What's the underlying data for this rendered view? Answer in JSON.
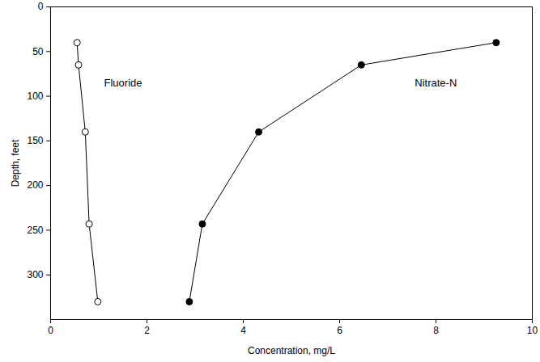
{
  "chart_data": {
    "type": "line",
    "xlabel": "Concentration, mg/L",
    "ylabel": "Depth, feet",
    "xlim": [
      0,
      10
    ],
    "xticks": [
      0,
      2,
      4,
      6,
      8,
      10
    ],
    "ylim": [
      350,
      0
    ],
    "yticks": [
      0,
      50,
      100,
      150,
      200,
      250,
      300
    ],
    "grid": false,
    "series": [
      {
        "name": "Fluoride",
        "color": "#000000",
        "marker": "open circle",
        "line_style": "solid",
        "x": [
          0.55,
          0.58,
          0.72,
          0.8,
          0.98
        ],
        "y": [
          40,
          65,
          140,
          243,
          330
        ]
      },
      {
        "name": "Nitrate-N",
        "color": "#000000",
        "marker": "filled circle",
        "line_style": "solid",
        "x": [
          9.25,
          6.45,
          4.32,
          3.15,
          2.88
        ],
        "y": [
          40,
          65,
          140,
          243,
          330
        ]
      }
    ]
  }
}
